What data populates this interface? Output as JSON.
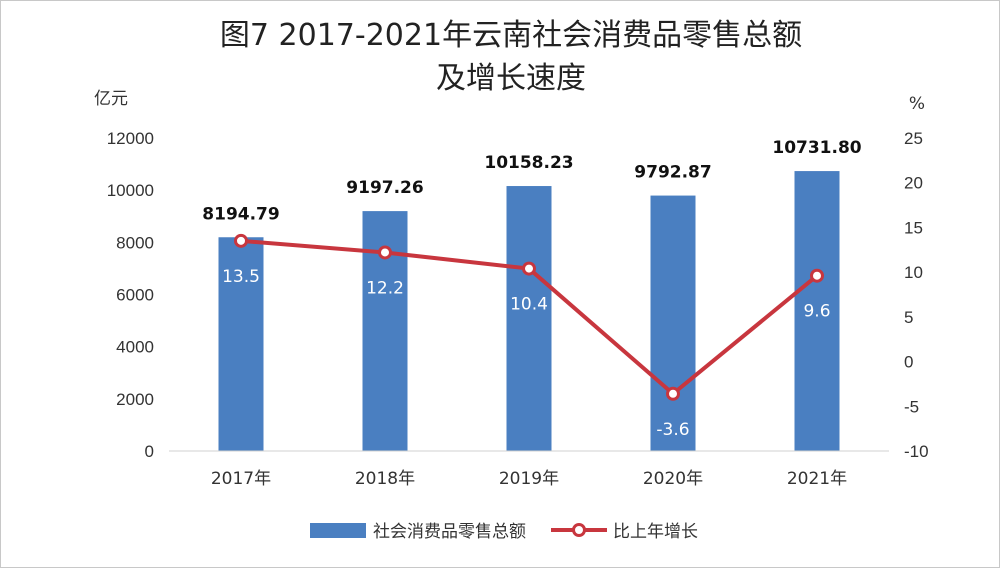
{
  "chart_data": {
    "type": "bar",
    "title_line1": "图7  2017-2021年云南社会消费品零售总额",
    "title_line2": "及增长速度",
    "y_left_unit": "亿元",
    "y_right_unit": "%",
    "categories": [
      "2017年",
      "2018年",
      "2019年",
      "2020年",
      "2021年"
    ],
    "y_left_ticks": [
      "0",
      "2000",
      "4000",
      "6000",
      "8000",
      "10000",
      "12000"
    ],
    "y_right_ticks": [
      "-10",
      "-5",
      "0",
      "5",
      "10",
      "15",
      "20",
      "25"
    ],
    "ylim_left": [
      0,
      12000
    ],
    "ylim_right": [
      -10,
      25
    ],
    "series": [
      {
        "name": "社会消费品零售总额",
        "type": "bar",
        "axis": "left",
        "values": [
          8194.79,
          9197.26,
          10158.23,
          9792.87,
          10731.8
        ],
        "labels": [
          "8194.79",
          "9197.26",
          "10158.23",
          "9792.87",
          "10731.80"
        ]
      },
      {
        "name": "比上年增长",
        "type": "line",
        "axis": "right",
        "values": [
          13.5,
          12.2,
          10.4,
          -3.6,
          9.6
        ],
        "labels": [
          "13.5",
          "12.2",
          "10.4",
          "-3.6",
          "9.6"
        ]
      }
    ],
    "legend_position": "bottom",
    "grid": false,
    "colors": {
      "bar": "#4a7fc1",
      "line": "#c8363e"
    }
  }
}
